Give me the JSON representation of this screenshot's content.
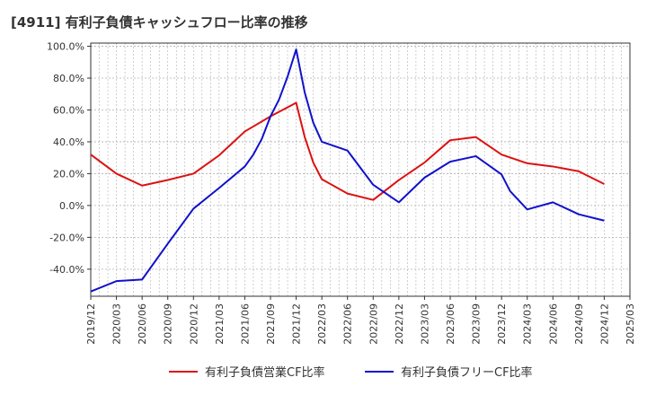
{
  "title": "[4911]  有利子負債キャッシュフロー比率の推移",
  "chart_data": {
    "type": "line",
    "title": "[4911]  有利子負債キャッシュフロー比率の推移",
    "x": [
      "2019/12",
      "2020/03",
      "2020/06",
      "2020/09",
      "2020/12",
      "2021/03",
      "2021/06",
      "2021/09",
      "2021/12",
      "2022/03",
      "2022/06",
      "2022/09",
      "2022/12",
      "2023/03",
      "2023/06",
      "2023/09",
      "2023/12",
      "2024/03",
      "2024/06",
      "2024/09",
      "2024/12",
      "2025/03"
    ],
    "x_ticks": [
      "2019/12",
      "2020/03",
      "2020/06",
      "2020/09",
      "2020/12",
      "2021/03",
      "2021/06",
      "2021/09",
      "2021/12",
      "2022/03",
      "2022/06",
      "2022/09",
      "2022/12",
      "2023/03",
      "2023/06",
      "2023/09",
      "2023/12",
      "2024/03",
      "2024/06",
      "2024/09",
      "2024/12",
      "2025/03"
    ],
    "y_ticks": [
      -40,
      -20,
      0,
      20,
      40,
      60,
      80,
      100
    ],
    "y_tick_labels": [
      "-40.0%",
      "-20.0%",
      "0.0%",
      "20.0%",
      "40.0%",
      "60.0%",
      "80.0%",
      "100.0%"
    ],
    "ylim": [
      -57,
      102
    ],
    "grid": true,
    "legend_position": "bottom",
    "series": [
      {
        "name": "有利子負債営業CF比率",
        "color": "#dd1111",
        "points": [
          [
            "2019/12",
            32.0
          ],
          [
            "2020/03",
            20.0
          ],
          [
            "2020/06",
            12.5
          ],
          [
            "2020/09",
            16.0
          ],
          [
            "2020/12",
            20.0
          ],
          [
            "2021/03",
            31.5
          ],
          [
            "2021/06",
            46.5
          ],
          [
            "2021/09",
            56.0
          ],
          [
            "2021/12",
            64.5
          ],
          [
            "2022/01",
            43.0
          ],
          [
            "2022/02",
            27.0
          ],
          [
            "2022/03",
            16.5
          ],
          [
            "2022/06",
            7.5
          ],
          [
            "2022/09",
            3.5
          ],
          [
            "2022/12",
            16.0
          ],
          [
            "2023/03",
            27.0
          ],
          [
            "2023/06",
            41.0
          ],
          [
            "2023/09",
            43.0
          ],
          [
            "2023/12",
            32.0
          ],
          [
            "2024/03",
            26.5
          ],
          [
            "2024/06",
            24.5
          ],
          [
            "2024/09",
            21.5
          ],
          [
            "2024/12",
            13.5
          ]
        ]
      },
      {
        "name": "有利子負債フリーCF比率",
        "color": "#1111cc",
        "points": [
          [
            "2019/12",
            -54.0
          ],
          [
            "2020/03",
            -47.5
          ],
          [
            "2020/06",
            -46.5
          ],
          [
            "2020/09",
            -24.0
          ],
          [
            "2020/12",
            -2.0
          ],
          [
            "2021/03",
            11.0
          ],
          [
            "2021/06",
            24.5
          ],
          [
            "2021/07",
            32.0
          ],
          [
            "2021/08",
            42.0
          ],
          [
            "2021/09",
            56.0
          ],
          [
            "2021/10",
            66.5
          ],
          [
            "2021/11",
            81.0
          ],
          [
            "2021/12",
            98.0
          ],
          [
            "2022/01",
            71.0
          ],
          [
            "2022/02",
            52.0
          ],
          [
            "2022/03",
            40.0
          ],
          [
            "2022/06",
            34.5
          ],
          [
            "2022/09",
            13.0
          ],
          [
            "2022/12",
            2.0
          ],
          [
            "2023/03",
            17.5
          ],
          [
            "2023/06",
            27.5
          ],
          [
            "2023/09",
            31.0
          ],
          [
            "2023/12",
            19.5
          ],
          [
            "2024/01",
            9.0
          ],
          [
            "2024/03",
            -2.5
          ],
          [
            "2024/06",
            2.0
          ],
          [
            "2024/09",
            -5.5
          ],
          [
            "2024/12",
            -9.5
          ]
        ]
      }
    ]
  }
}
